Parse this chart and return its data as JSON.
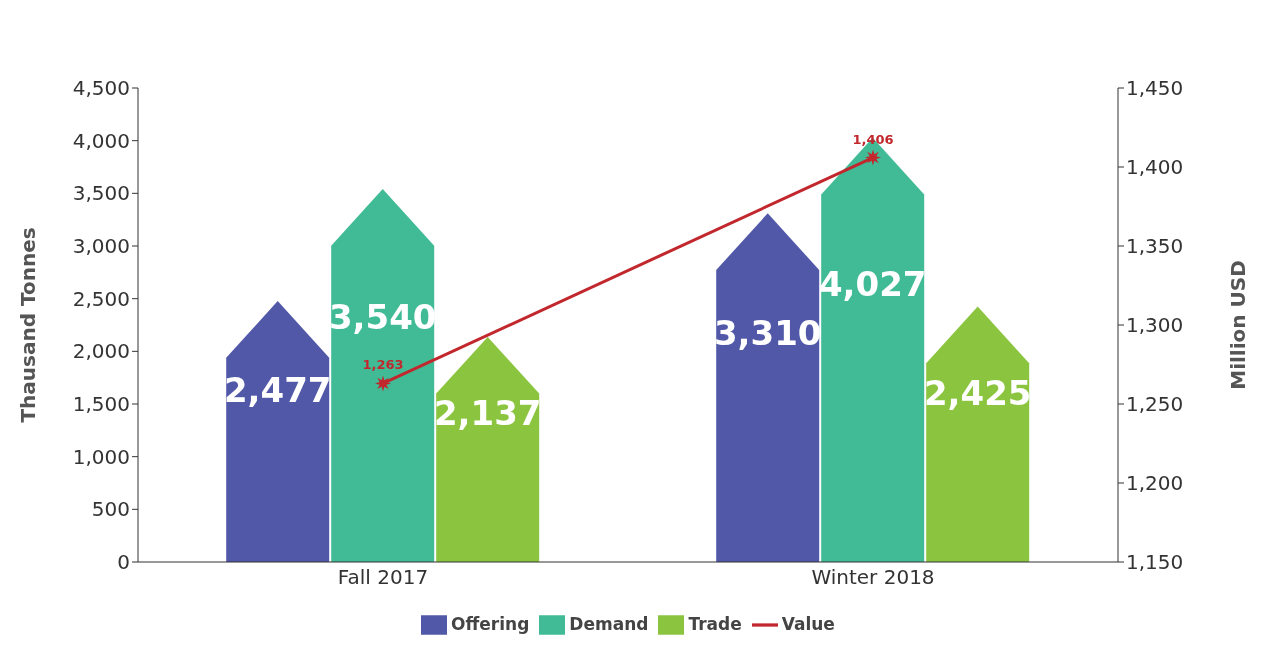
{
  "chart_data": {
    "type": "bar",
    "categories": [
      "Fall 2017",
      "Winter 2018"
    ],
    "series": [
      {
        "name": "Offering",
        "color": "#5158a8",
        "values": [
          2477,
          3310
        ],
        "value_labels": [
          "2,477",
          "3,310"
        ]
      },
      {
        "name": "Demand",
        "color": "#41bb96",
        "values": [
          3540,
          4027
        ],
        "value_labels": [
          "3,540",
          "4,027"
        ]
      },
      {
        "name": "Trade",
        "color": "#8bc540",
        "values": [
          2137,
          2425
        ],
        "value_labels": [
          "2,137",
          "2,425"
        ]
      },
      {
        "name": "Value",
        "type": "line",
        "axis": "y2",
        "color": "#c1272d",
        "values": [
          1263,
          1406
        ],
        "value_labels": [
          "1,263",
          "1,406"
        ]
      }
    ],
    "ylabel": "Thausand Tonnes",
    "y2label": "Million USD",
    "ylim": [
      0,
      4500
    ],
    "yticks": [
      0,
      500,
      {
        "value": 1000,
        "label": "1,000"
      },
      {
        "value": 1500,
        "label": "1,500"
      },
      {
        "value": 2000,
        "label": "2,000"
      },
      {
        "value": 2500,
        "label": "2,500"
      },
      {
        "value": 3000,
        "label": "3,000"
      },
      {
        "value": 3500,
        "label": "3,500"
      },
      {
        "value": 4000,
        "label": "4,000"
      },
      {
        "value": 4500,
        "label": "4,500"
      }
    ],
    "y2lim": [
      1150,
      1450
    ],
    "y2ticks": [
      {
        "value": 1150,
        "label": "1,150"
      },
      {
        "value": 1200,
        "label": "1,200"
      },
      {
        "value": 1250,
        "label": "1,250"
      },
      {
        "value": 1300,
        "label": "1,300"
      },
      {
        "value": 1350,
        "label": "1,350"
      },
      {
        "value": 1400,
        "label": "1,400"
      },
      {
        "value": 1450,
        "label": "1,450"
      }
    ],
    "grid": false,
    "legend": "bottom",
    "marker": "star"
  }
}
